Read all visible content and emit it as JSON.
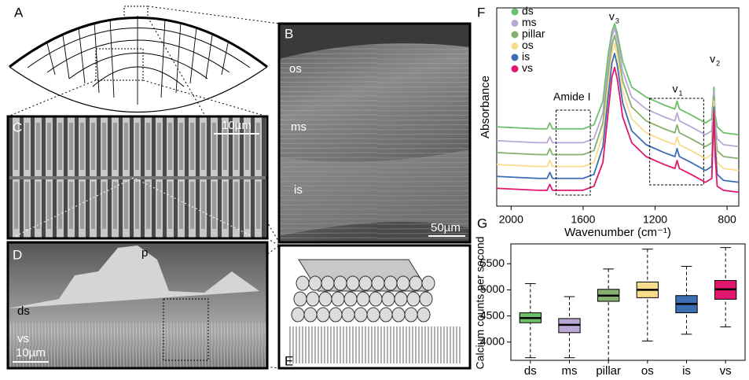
{
  "panels": {
    "a": {
      "letter": "A"
    },
    "b": {
      "letter": "B",
      "labels": [
        "os",
        "ms",
        "is"
      ],
      "scale": "50µm"
    },
    "c": {
      "letter": "C",
      "scale": "10µm"
    },
    "d": {
      "letter": "D",
      "labels": [
        "p",
        "ds",
        "vs"
      ],
      "scale": "10µm"
    },
    "e": {
      "letter": "E"
    },
    "f": {
      "letter": "F"
    },
    "g": {
      "letter": "G"
    }
  },
  "chart_data": [
    {
      "type": "line",
      "ylabel": "Absorbance",
      "xlabel": "Wavenumber (cm⁻¹)",
      "xlim": [
        2080,
        735
      ],
      "xticks": [
        2000,
        1600,
        1200,
        800
      ],
      "ylim": [
        0,
        100
      ],
      "annotations": [
        {
          "text": "v",
          "sub": "3"
        },
        {
          "text": "v",
          "sub": "2"
        },
        {
          "text": "v",
          "sub": "1"
        },
        {
          "text": "Amide I"
        }
      ],
      "x": [
        2080,
        1850,
        1800,
        1785,
        1770,
        1700,
        1600,
        1540,
        1490,
        1460,
        1440,
        1425,
        1410,
        1380,
        1330,
        1250,
        1150,
        1090,
        1078,
        1065,
        1000,
        920,
        885,
        873,
        866,
        855,
        820,
        735
      ],
      "series": [
        {
          "name": "ds",
          "color": "#6cbf6b",
          "values": [
            40,
            39,
            39,
            42,
            39,
            39,
            39,
            41,
            53,
            77,
            88,
            92,
            87,
            73,
            60,
            55,
            51,
            49,
            53,
            49,
            46,
            42,
            44,
            60,
            46,
            40,
            37,
            36
          ]
        },
        {
          "name": "ms",
          "color": "#b9a8d6",
          "values": [
            33,
            32,
            32,
            35,
            32,
            32,
            32,
            34,
            47,
            72,
            85,
            90,
            84,
            68,
            55,
            49,
            45,
            43,
            47,
            43,
            40,
            36,
            38,
            58,
            42,
            34,
            31,
            30
          ]
        },
        {
          "name": "pillar",
          "color": "#86b06f",
          "values": [
            27,
            26,
            26,
            29,
            26,
            26,
            26,
            28,
            42,
            67,
            81,
            86,
            80,
            63,
            50,
            43,
            39,
            37,
            41,
            37,
            34,
            30,
            32,
            55,
            38,
            28,
            25,
            24
          ]
        },
        {
          "name": "os",
          "color": "#f7dc8c",
          "values": [
            21,
            20,
            20,
            23,
            20,
            20,
            20,
            22,
            36,
            62,
            77,
            82,
            76,
            58,
            44,
            37,
            33,
            31,
            35,
            31,
            28,
            24,
            26,
            53,
            34,
            22,
            19,
            18
          ]
        },
        {
          "name": "is",
          "color": "#3c6eb4",
          "values": [
            15,
            14,
            14,
            17,
            14,
            14,
            14,
            16,
            30,
            56,
            72,
            77,
            71,
            52,
            38,
            31,
            27,
            25,
            29,
            25,
            22,
            18,
            20,
            50,
            30,
            16,
            13,
            12
          ]
        },
        {
          "name": "vs",
          "color": "#e0166f",
          "values": [
            9,
            8,
            8,
            11,
            8,
            8,
            8,
            10,
            22,
            48,
            65,
            70,
            64,
            45,
            32,
            25,
            21,
            19,
            23,
            19,
            16,
            12,
            14,
            48,
            25,
            10,
            8,
            7
          ]
        }
      ]
    },
    {
      "type": "box",
      "ylabel": "Calcium counts per second",
      "categories": [
        "ds",
        "ms",
        "pillar",
        "os",
        "is",
        "vs"
      ],
      "colors": [
        "#6cbf6b",
        "#b9a8d6",
        "#86b06f",
        "#f7dc8c",
        "#3c6eb4",
        "#e0166f"
      ],
      "min": [
        3700,
        3700,
        3650,
        4020,
        4150,
        4290
      ],
      "q1": [
        4370,
        4180,
        4780,
        4850,
        4560,
        4820
      ],
      "median": [
        4460,
        4330,
        4890,
        5000,
        4730,
        5010
      ],
      "q3": [
        4560,
        4450,
        5010,
        5150,
        4890,
        5180
      ],
      "max": [
        5120,
        4870,
        5400,
        5780,
        5450,
        5810
      ],
      "ylim": [
        3650,
        5880
      ],
      "yticks": [
        4000,
        4500,
        5000,
        5500
      ]
    }
  ]
}
